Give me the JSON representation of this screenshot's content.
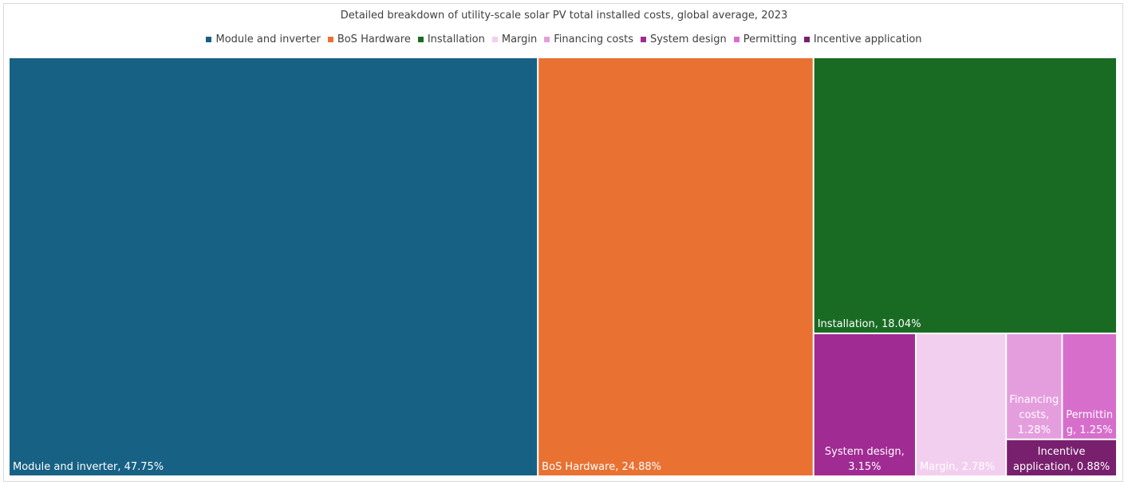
{
  "chart_data": {
    "type": "treemap",
    "title": "Detailed breakdown of utility-scale solar PV total installed costs, global average, 2023",
    "unit": "%",
    "items": [
      {
        "name": "Module and inverter",
        "value": 47.75,
        "label_lines": [
          "Module and inverter, 47.75%"
        ],
        "color": "#176184",
        "text_color": "#ffffff"
      },
      {
        "name": "BoS Hardware",
        "value": 24.88,
        "label_lines": [
          "BoS Hardware, 24.88%"
        ],
        "color": "#e97132",
        "text_color": "#ffffff"
      },
      {
        "name": "Installation",
        "value": 18.04,
        "label_lines": [
          "Installation, 18.04%"
        ],
        "color": "#196b24",
        "text_color": "#ffffff"
      },
      {
        "name": "Margin",
        "value": 2.78,
        "label_lines": [
          "Margin, 2.78%"
        ],
        "color": "#f2cfee",
        "text_color": "#ffffff"
      },
      {
        "name": "Financing costs",
        "value": 1.28,
        "label_lines": [
          "Financing",
          "costs,",
          "1.28%"
        ],
        "color": "#e59edd",
        "text_color": "#ffffff"
      },
      {
        "name": "System design",
        "value": 3.15,
        "label_lines": [
          "System design,",
          "3.15%"
        ],
        "color": "#a02b93",
        "text_color": "#ffffff"
      },
      {
        "name": "Permitting",
        "value": 1.25,
        "label_lines": [
          "Permittin",
          "g, 1.25%"
        ],
        "color": "#d86ecc",
        "text_color": "#ffffff"
      },
      {
        "name": "Incentive application",
        "value": 0.88,
        "label_lines": [
          "Incentive",
          "application, 0.88%"
        ],
        "color": "#78206e",
        "text_color": "#ffffff"
      }
    ],
    "legend": [
      "Module and inverter",
      "BoS Hardware",
      "Installation",
      "Margin",
      "Financing costs",
      "System design",
      "Permitting",
      "Incentive application"
    ],
    "legend_position": "top"
  }
}
